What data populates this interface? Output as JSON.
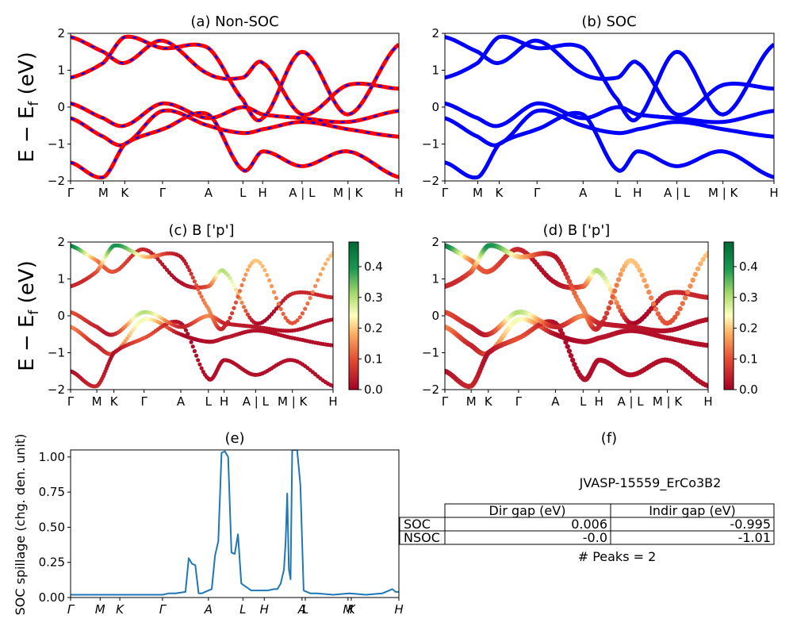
{
  "chart_data": [
    {
      "id": "a",
      "type": "line",
      "title": "(a) Non-SOC",
      "ylabel": "E − E_f (eV)",
      "ylim": [
        -2,
        2
      ],
      "yticks": [
        2,
        1,
        0,
        -1,
        -2
      ],
      "kpath": [
        "Γ",
        "M",
        "K",
        "Γ",
        "A",
        "L",
        "H",
        "A | L",
        "M | K",
        "H"
      ],
      "series": [
        {
          "name": "",
          "style": "red-blue-dashed",
          "x": [
            0,
            1,
            2,
            3,
            4,
            5,
            6,
            7,
            8,
            9
          ],
          "values": [
            1.9,
            1.5,
            1.2,
            1.8,
            0.9,
            0.8,
            1.2,
            -0.2,
            0.6,
            0.5
          ]
        },
        {
          "name": "",
          "style": "red-blue-dashed",
          "x": [
            0,
            1,
            2,
            3,
            4,
            5,
            6,
            7,
            8,
            9
          ],
          "values": [
            0.8,
            1.2,
            1.9,
            1.6,
            1.6,
            0.2,
            -0.3,
            1.5,
            -0.2,
            1.7
          ]
        },
        {
          "name": "",
          "style": "red-blue-dashed",
          "x": [
            0,
            1,
            2,
            3,
            4,
            5,
            6,
            7,
            8,
            9
          ],
          "values": [
            -0.3,
            -0.8,
            -1.0,
            -0.1,
            -0.5,
            -0.7,
            -0.6,
            -0.4,
            -0.6,
            -0.8
          ]
        },
        {
          "name": "",
          "style": "red-blue-dashed",
          "x": [
            0,
            1,
            2,
            3,
            4,
            5,
            6,
            7,
            8,
            9
          ],
          "values": [
            -1.5,
            -1.9,
            -1.0,
            -0.6,
            -0.2,
            -1.7,
            -1.2,
            -1.6,
            -1.2,
            -1.9
          ]
        },
        {
          "name": "",
          "style": "red-blue-dashed",
          "x": [
            0,
            1,
            2,
            3,
            4,
            5,
            6,
            7,
            8,
            9
          ],
          "values": [
            0.1,
            -0.3,
            -0.5,
            0.1,
            -0.3,
            0.0,
            -0.2,
            -0.3,
            -0.4,
            -0.1
          ]
        }
      ]
    },
    {
      "id": "b",
      "type": "line",
      "title": "(b) SOC",
      "ylim": [
        -2,
        2
      ],
      "yticks": [
        2,
        1,
        0,
        -1,
        -2
      ],
      "kpath": [
        "Γ",
        "M",
        "K",
        "Γ",
        "A",
        "L",
        "H",
        "A | L",
        "M | K",
        "H"
      ],
      "series": [
        {
          "name": "",
          "style": "blue",
          "x": [
            0,
            1,
            2,
            3,
            4,
            5,
            6,
            7,
            8,
            9
          ],
          "values": [
            1.9,
            1.5,
            1.2,
            1.8,
            0.9,
            0.8,
            1.2,
            -0.2,
            0.6,
            0.5
          ]
        },
        {
          "name": "",
          "style": "blue",
          "x": [
            0,
            1,
            2,
            3,
            4,
            5,
            6,
            7,
            8,
            9
          ],
          "values": [
            0.8,
            1.2,
            1.9,
            1.6,
            1.6,
            0.2,
            -0.3,
            1.5,
            -0.2,
            1.7
          ]
        },
        {
          "name": "",
          "style": "blue",
          "x": [
            0,
            1,
            2,
            3,
            4,
            5,
            6,
            7,
            8,
            9
          ],
          "values": [
            -0.3,
            -0.8,
            -1.0,
            -0.1,
            -0.5,
            -0.7,
            -0.6,
            -0.4,
            -0.6,
            -0.8
          ]
        },
        {
          "name": "",
          "style": "blue",
          "x": [
            0,
            1,
            2,
            3,
            4,
            5,
            6,
            7,
            8,
            9
          ],
          "values": [
            -1.5,
            -1.9,
            -1.0,
            -0.6,
            -0.2,
            -1.7,
            -1.2,
            -1.6,
            -1.2,
            -1.9
          ]
        },
        {
          "name": "",
          "style": "blue",
          "x": [
            0,
            1,
            2,
            3,
            4,
            5,
            6,
            7,
            8,
            9
          ],
          "values": [
            0.1,
            -0.3,
            -0.5,
            0.1,
            -0.3,
            0.0,
            -0.2,
            -0.3,
            -0.4,
            -0.1
          ]
        }
      ]
    },
    {
      "id": "c",
      "type": "scatter",
      "title": "(c)  B ['p']",
      "ylabel": "E − E_f (eV)",
      "ylim": [
        -2,
        2
      ],
      "yticks": [
        2,
        1,
        0,
        -1,
        -2
      ],
      "kpath": [
        "Γ",
        "M",
        "K",
        "Γ",
        "A",
        "L",
        "H",
        "A | L",
        "M | K",
        "H"
      ],
      "colorbar": {
        "ticks": [
          0.4,
          0.3,
          0.2,
          0.1,
          0.0
        ],
        "range": [
          0,
          0.48
        ],
        "colormap": "RdYlGn"
      },
      "series": [
        {
          "name": "",
          "x": [
            0,
            1,
            2,
            3,
            4,
            5,
            6,
            7,
            8,
            9
          ],
          "values": [
            1.9,
            1.5,
            1.2,
            1.8,
            0.9,
            0.8,
            1.2,
            -0.2,
            0.6,
            0.5
          ],
          "weights": [
            0.45,
            0.15,
            0.1,
            0.05,
            0.02,
            0.1,
            0.3,
            0.02,
            0.05,
            0.05
          ]
        },
        {
          "name": "",
          "x": [
            0,
            1,
            2,
            3,
            4,
            5,
            6,
            7,
            8,
            9
          ],
          "values": [
            0.8,
            1.2,
            1.9,
            1.6,
            1.6,
            0.2,
            -0.3,
            1.5,
            -0.2,
            1.7
          ],
          "weights": [
            0.05,
            0.1,
            0.4,
            0.2,
            0.03,
            0.15,
            0.05,
            0.2,
            0.1,
            0.2
          ]
        },
        {
          "name": "",
          "x": [
            0,
            1,
            2,
            3,
            4,
            5,
            6,
            7,
            8,
            9
          ],
          "values": [
            -0.3,
            -0.8,
            -1.0,
            -0.1,
            -0.5,
            -0.7,
            -0.6,
            -0.4,
            -0.6,
            -0.8
          ],
          "weights": [
            0.15,
            0.05,
            0.1,
            0.25,
            0.02,
            0.02,
            0.03,
            0.02,
            0.02,
            0.02
          ]
        },
        {
          "name": "",
          "x": [
            0,
            1,
            2,
            3,
            4,
            5,
            6,
            7,
            8,
            9
          ],
          "values": [
            -1.5,
            -1.9,
            -1.0,
            -0.6,
            -0.2,
            -1.7,
            -1.2,
            -1.6,
            -1.2,
            -1.9
          ],
          "weights": [
            0.02,
            0.05,
            0.02,
            0.1,
            0.02,
            0.02,
            0.02,
            0.02,
            0.02,
            0.02
          ]
        },
        {
          "name": "",
          "x": [
            0,
            1,
            2,
            3,
            4,
            5,
            6,
            7,
            8,
            9
          ],
          "values": [
            0.1,
            -0.3,
            -0.5,
            0.1,
            -0.3,
            0.0,
            -0.2,
            -0.3,
            -0.4,
            -0.1
          ],
          "weights": [
            0.1,
            0.05,
            0.05,
            0.3,
            0.05,
            0.15,
            0.05,
            0.03,
            0.02,
            0.02
          ]
        }
      ]
    },
    {
      "id": "d",
      "type": "scatter",
      "title": "(d) B ['p']",
      "ylim": [
        -2,
        2
      ],
      "yticks": [
        2,
        1,
        0,
        -1,
        -2
      ],
      "kpath": [
        "Γ",
        "M",
        "K",
        "Γ",
        "A",
        "L",
        "H",
        "A | L",
        "M | K",
        "H"
      ],
      "colorbar": {
        "ticks": [
          0.4,
          0.3,
          0.2,
          0.1,
          0.0
        ],
        "range": [
          0,
          0.48
        ],
        "colormap": "RdYlGn"
      },
      "series": [
        {
          "name": "",
          "x": [
            0,
            1,
            2,
            3,
            4,
            5,
            6,
            7,
            8,
            9
          ],
          "values": [
            1.9,
            1.5,
            1.2,
            1.8,
            0.9,
            0.8,
            1.2,
            -0.2,
            0.6,
            0.5
          ],
          "weights": [
            0.45,
            0.15,
            0.1,
            0.05,
            0.02,
            0.1,
            0.3,
            0.02,
            0.05,
            0.05
          ]
        },
        {
          "name": "",
          "x": [
            0,
            1,
            2,
            3,
            4,
            5,
            6,
            7,
            8,
            9
          ],
          "values": [
            0.8,
            1.2,
            1.9,
            1.6,
            1.6,
            0.2,
            -0.3,
            1.5,
            -0.2,
            1.7
          ],
          "weights": [
            0.05,
            0.1,
            0.4,
            0.2,
            0.03,
            0.15,
            0.05,
            0.2,
            0.1,
            0.2
          ]
        },
        {
          "name": "",
          "x": [
            0,
            1,
            2,
            3,
            4,
            5,
            6,
            7,
            8,
            9
          ],
          "values": [
            -0.3,
            -0.8,
            -1.0,
            -0.1,
            -0.5,
            -0.7,
            -0.6,
            -0.4,
            -0.6,
            -0.8
          ],
          "weights": [
            0.15,
            0.05,
            0.1,
            0.25,
            0.02,
            0.02,
            0.03,
            0.02,
            0.02,
            0.02
          ]
        },
        {
          "name": "",
          "x": [
            0,
            1,
            2,
            3,
            4,
            5,
            6,
            7,
            8,
            9
          ],
          "values": [
            -1.5,
            -1.9,
            -1.0,
            -0.6,
            -0.2,
            -1.7,
            -1.2,
            -1.6,
            -1.2,
            -1.9
          ],
          "weights": [
            0.02,
            0.05,
            0.02,
            0.1,
            0.02,
            0.02,
            0.02,
            0.02,
            0.02,
            0.02
          ]
        },
        {
          "name": "",
          "x": [
            0,
            1,
            2,
            3,
            4,
            5,
            6,
            7,
            8,
            9
          ],
          "values": [
            0.1,
            -0.3,
            -0.5,
            0.1,
            -0.3,
            0.0,
            -0.2,
            -0.3,
            -0.4,
            -0.1
          ],
          "weights": [
            0.1,
            0.05,
            0.05,
            0.3,
            0.05,
            0.15,
            0.05,
            0.03,
            0.02,
            0.02
          ]
        }
      ]
    },
    {
      "id": "e",
      "type": "line",
      "title": "(e)",
      "ylabel": "SOC spillage (chg. den. unit)",
      "ylim": [
        0,
        1.05
      ],
      "yticks": [
        1.0,
        0.75,
        0.5,
        0.25,
        0.0
      ],
      "ytick_labels": [
        "1.00",
        "0.75",
        "0.50",
        "0.25",
        "0.00"
      ],
      "xticks": [
        {
          "label": "Γ",
          "x": 0.0
        },
        {
          "label": "M",
          "x": 0.09
        },
        {
          "label": "K",
          "x": 0.15
        },
        {
          "label": "Γ",
          "x": 0.28
        },
        {
          "label": "A",
          "x": 0.42
        },
        {
          "label": "L",
          "x": 0.525
        },
        {
          "label": "H",
          "x": 0.59
        },
        {
          "label": "A",
          "x": 0.705
        },
        {
          "label": "L",
          "x": 0.715
        },
        {
          "label": "M",
          "x": 0.845
        },
        {
          "label": "K",
          "x": 0.855
        },
        {
          "label": "H",
          "x": 1.0
        }
      ],
      "series": [
        {
          "name": "",
          "color": "#1f77b4",
          "x": [
            0.0,
            0.1,
            0.2,
            0.28,
            0.3,
            0.32,
            0.35,
            0.36,
            0.37,
            0.38,
            0.39,
            0.4,
            0.42,
            0.43,
            0.44,
            0.45,
            0.46,
            0.47,
            0.48,
            0.49,
            0.5,
            0.51,
            0.52,
            0.55,
            0.6,
            0.62,
            0.63,
            0.64,
            0.65,
            0.655,
            0.66,
            0.665,
            0.67,
            0.675,
            0.68,
            0.69,
            0.7,
            0.71,
            0.72,
            0.73,
            0.75,
            0.8,
            0.85,
            0.9,
            0.95,
            0.98,
            0.99,
            1.0
          ],
          "values": [
            0.02,
            0.02,
            0.02,
            0.02,
            0.03,
            0.03,
            0.04,
            0.28,
            0.24,
            0.23,
            0.03,
            0.03,
            0.05,
            0.06,
            0.3,
            0.4,
            1.03,
            1.04,
            1.0,
            0.32,
            0.31,
            0.45,
            0.1,
            0.05,
            0.05,
            0.06,
            0.06,
            0.1,
            0.2,
            0.4,
            0.74,
            0.2,
            0.13,
            1.05,
            1.05,
            1.05,
            0.8,
            0.05,
            0.04,
            0.03,
            0.03,
            0.02,
            0.03,
            0.02,
            0.03,
            0.06,
            0.04,
            0.04
          ]
        }
      ]
    }
  ],
  "panel_f": {
    "title": "(f)",
    "material": "JVASP-15559_ErCo3B2",
    "table": {
      "headers": [
        "",
        "Dir gap (eV)",
        "Indir gap (eV)"
      ],
      "rows": [
        [
          "SOC",
          "0.006",
          "-0.995"
        ],
        [
          "NSOC",
          "-0.0",
          "-1.01"
        ]
      ]
    },
    "peaks_label": "# Peaks = 2"
  },
  "colors": {
    "nonsoc_red": "#ff0000",
    "nonsoc_blue": "#0000ff",
    "soc_blue": "#0000ff",
    "spillage_line": "#1f77b4"
  }
}
